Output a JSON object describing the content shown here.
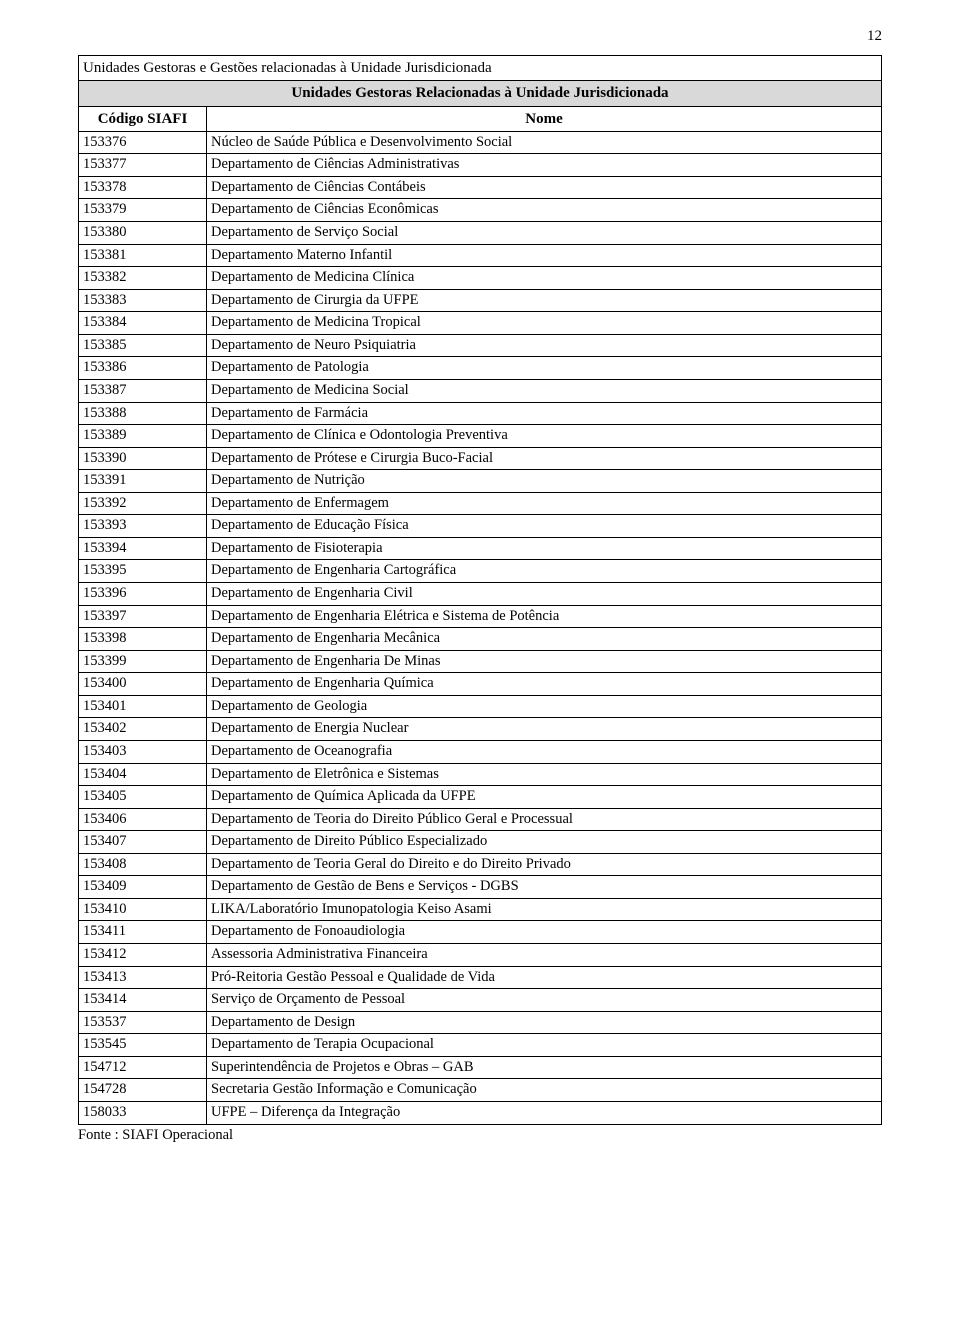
{
  "page_number": "12",
  "table": {
    "title": "Unidades Gestoras e Gestões relacionadas à Unidade Jurisdicionada",
    "sub_header": "Unidades Gestoras Relacionadas à Unidade Jurisdicionada",
    "columns": {
      "codigo": "Código SIAFI",
      "nome": "Nome"
    },
    "rows": [
      {
        "c": "153376",
        "n": "Núcleo de Saúde Pública e Desenvolvimento Social"
      },
      {
        "c": "153377",
        "n": "Departamento de Ciências Administrativas"
      },
      {
        "c": "153378",
        "n": "Departamento de Ciências Contábeis"
      },
      {
        "c": "153379",
        "n": "Departamento de Ciências Econômicas"
      },
      {
        "c": "153380",
        "n": "Departamento de Serviço Social"
      },
      {
        "c": "153381",
        "n": "Departamento Materno Infantil"
      },
      {
        "c": "153382",
        "n": "Departamento de Medicina Clínica"
      },
      {
        "c": "153383",
        "n": "Departamento de Cirurgia da UFPE"
      },
      {
        "c": "153384",
        "n": "Departamento de Medicina Tropical"
      },
      {
        "c": "153385",
        "n": "Departamento de Neuro Psiquiatria"
      },
      {
        "c": "153386",
        "n": "Departamento de Patologia"
      },
      {
        "c": "153387",
        "n": "Departamento de Medicina Social"
      },
      {
        "c": "153388",
        "n": "Departamento de Farmácia"
      },
      {
        "c": "153389",
        "n": "Departamento de Clínica e Odontologia Preventiva"
      },
      {
        "c": "153390",
        "n": "Departamento de Prótese e Cirurgia Buco-Facial"
      },
      {
        "c": "153391",
        "n": "Departamento de Nutrição"
      },
      {
        "c": "153392",
        "n": "Departamento de Enfermagem"
      },
      {
        "c": "153393",
        "n": "Departamento de Educação Física"
      },
      {
        "c": "153394",
        "n": "Departamento de Fisioterapia"
      },
      {
        "c": "153395",
        "n": "Departamento de Engenharia Cartográfica"
      },
      {
        "c": "153396",
        "n": "Departamento de Engenharia Civil"
      },
      {
        "c": "153397",
        "n": "Departamento de Engenharia Elétrica e Sistema de Potência"
      },
      {
        "c": "153398",
        "n": "Departamento de Engenharia Mecânica"
      },
      {
        "c": "153399",
        "n": "Departamento de Engenharia De Minas"
      },
      {
        "c": "153400",
        "n": "Departamento de Engenharia Química"
      },
      {
        "c": "153401",
        "n": "Departamento de Geologia"
      },
      {
        "c": "153402",
        "n": "Departamento de Energia Nuclear"
      },
      {
        "c": "153403",
        "n": "Departamento de Oceanografia"
      },
      {
        "c": "153404",
        "n": "Departamento de Eletrônica e Sistemas"
      },
      {
        "c": "153405",
        "n": "Departamento de Química Aplicada da UFPE"
      },
      {
        "c": "153406",
        "n": "Departamento de Teoria do Direito Público Geral e Processual"
      },
      {
        "c": "153407",
        "n": "Departamento de Direito Público Especializado"
      },
      {
        "c": "153408",
        "n": "Departamento de Teoria Geral do Direito e do Direito Privado"
      },
      {
        "c": "153409",
        "n": "Departamento de Gestão de Bens e Serviços - DGBS"
      },
      {
        "c": "153410",
        "n": "LIKA/Laboratório Imunopatologia  Keiso Asami"
      },
      {
        "c": "153411",
        "n": "Departamento de Fonoaudiologia"
      },
      {
        "c": "153412",
        "n": "Assessoria Administrativa Financeira"
      },
      {
        "c": "153413",
        "n": "Pró-Reitoria Gestão Pessoal e Qualidade de Vida"
      },
      {
        "c": "153414",
        "n": "Serviço de Orçamento de Pessoal"
      },
      {
        "c": "153537",
        "n": "Departamento de Design"
      },
      {
        "c": "153545",
        "n": "Departamento de Terapia Ocupacional"
      },
      {
        "c": "154712",
        "n": "Superintendência de Projetos e Obras – GAB"
      },
      {
        "c": "154728",
        "n": "Secretaria Gestão Informação e Comunicação"
      },
      {
        "c": "158033",
        "n": "UFPE – Diferença da Integração"
      }
    ]
  },
  "footer": "Fonte : SIAFI Operacional"
}
